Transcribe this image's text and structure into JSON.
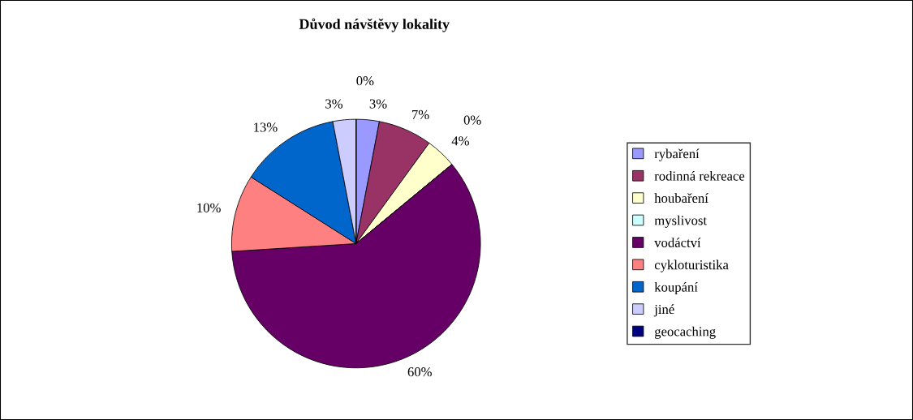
{
  "chart_data": {
    "type": "pie",
    "title": "Důvod návštěvy lokality",
    "categories": [
      "rybaření",
      "rodinná rekreace",
      "houbaření",
      "myslivost",
      "vodáctví",
      "cykloturistika",
      "koupání",
      "jiné",
      "geocaching"
    ],
    "values": [
      3,
      7,
      4,
      0,
      60,
      10,
      13,
      3,
      0
    ],
    "value_labels": [
      "3%",
      "7%",
      "4%",
      "0%",
      "60%",
      "10%",
      "13%",
      "3%",
      "0%"
    ],
    "colors": [
      "#9999ff",
      "#993366",
      "#ffffcc",
      "#ccffff",
      "#660066",
      "#ff8080",
      "#0066cc",
      "#ccccff",
      "#000080"
    ],
    "legend": "right"
  }
}
